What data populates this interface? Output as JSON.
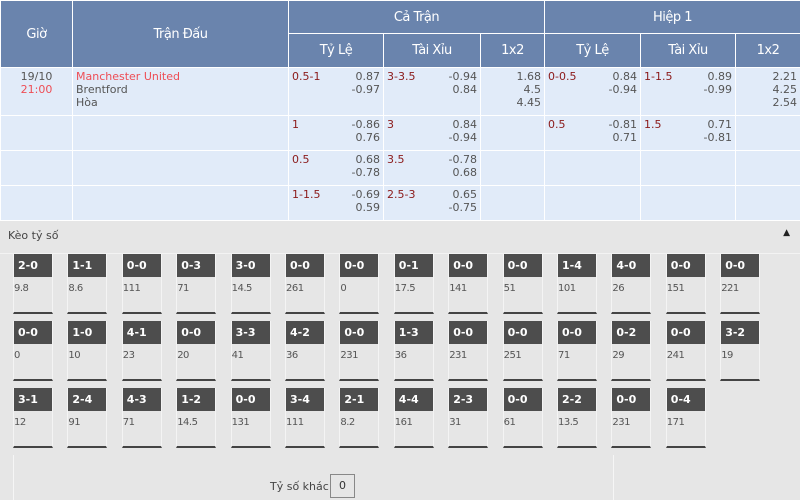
{
  "header": {
    "time": "Giờ",
    "match": "Trận Đấu",
    "full": "Cả Trận",
    "half": "Hiệp 1",
    "hdp": "Tỷ Lệ",
    "ou": "Tài Xỉu",
    "x12": "1x2"
  },
  "match": {
    "date": "19/10",
    "time": "21:00",
    "home": "Manchester United",
    "away": "Brentford",
    "draw": "Hòa"
  },
  "rows": [
    {
      "ft_hdp": "0.5-1",
      "ft_hdp_v": [
        "0.87",
        "-0.97"
      ],
      "ft_ou": "3-3.5",
      "ft_ou_v": [
        "-0.94",
        "0.84"
      ],
      "ft_1x2": [
        "1.68",
        "4.5",
        "4.45"
      ],
      "h1_hdp": "0-0.5",
      "h1_hdp_v": [
        "0.84",
        "-0.94"
      ],
      "h1_ou": "1-1.5",
      "h1_ou_v": [
        "0.89",
        "-0.99"
      ],
      "h1_1x2": [
        "2.21",
        "4.25",
        "2.54"
      ]
    },
    {
      "ft_hdp": "1",
      "ft_hdp_v": [
        "-0.86",
        "0.76"
      ],
      "ft_ou": "3",
      "ft_ou_v": [
        "0.84",
        "-0.94"
      ],
      "h1_hdp": "0.5",
      "h1_hdp_v": [
        "-0.81",
        "0.71"
      ],
      "h1_ou": "1.5",
      "h1_ou_v": [
        "0.71",
        "-0.81"
      ]
    },
    {
      "ft_hdp": "0.5",
      "ft_hdp_v": [
        "0.68",
        "-0.78"
      ],
      "ft_ou": "3.5",
      "ft_ou_v": [
        "-0.78",
        "0.68"
      ]
    },
    {
      "ft_hdp": "1-1.5",
      "ft_hdp_v": [
        "-0.69",
        "0.59"
      ],
      "ft_ou": "2.5-3",
      "ft_ou_v": [
        "0.65",
        "-0.75"
      ]
    }
  ],
  "correct_score": {
    "title": "Kèo tỷ số",
    "collapse_icon": "triangle-up-icon",
    "rows": [
      [
        [
          "2-0",
          "9.8"
        ],
        [
          "1-1",
          "8.6"
        ],
        [
          "0-0",
          "111"
        ],
        [
          "0-3",
          "71"
        ],
        [
          "3-0",
          "14.5"
        ],
        [
          "0-0",
          "261"
        ],
        [
          "0-0",
          "0"
        ],
        [
          "0-1",
          "17.5"
        ],
        [
          "0-0",
          "141"
        ],
        [
          "0-0",
          "51"
        ],
        [
          "1-4",
          "101"
        ],
        [
          "4-0",
          "26"
        ],
        [
          "0-0",
          "151"
        ],
        [
          "0-0",
          "221"
        ]
      ],
      [
        [
          "0-0",
          "0"
        ],
        [
          "1-0",
          "10"
        ],
        [
          "4-1",
          "23"
        ],
        [
          "0-0",
          "20"
        ],
        [
          "3-3",
          "41"
        ],
        [
          "4-2",
          "36"
        ],
        [
          "0-0",
          "231"
        ],
        [
          "1-3",
          "36"
        ],
        [
          "0-0",
          "231"
        ],
        [
          "0-0",
          "251"
        ],
        [
          "0-0",
          "71"
        ],
        [
          "0-2",
          "29"
        ],
        [
          "0-0",
          "241"
        ],
        [
          "3-2",
          "19"
        ]
      ],
      [
        [
          "3-1",
          "12"
        ],
        [
          "2-4",
          "91"
        ],
        [
          "4-3",
          "71"
        ],
        [
          "1-2",
          "14.5"
        ],
        [
          "0-0",
          "131"
        ],
        [
          "3-4",
          "111"
        ],
        [
          "2-1",
          "8.2"
        ],
        [
          "4-4",
          "161"
        ],
        [
          "2-3",
          "31"
        ],
        [
          "0-0",
          "61"
        ],
        [
          "2-2",
          "13.5"
        ],
        [
          "0-0",
          "231"
        ],
        [
          "0-4",
          "171"
        ]
      ]
    ],
    "other_label": "Tỷ số khác",
    "other_value": "0"
  }
}
